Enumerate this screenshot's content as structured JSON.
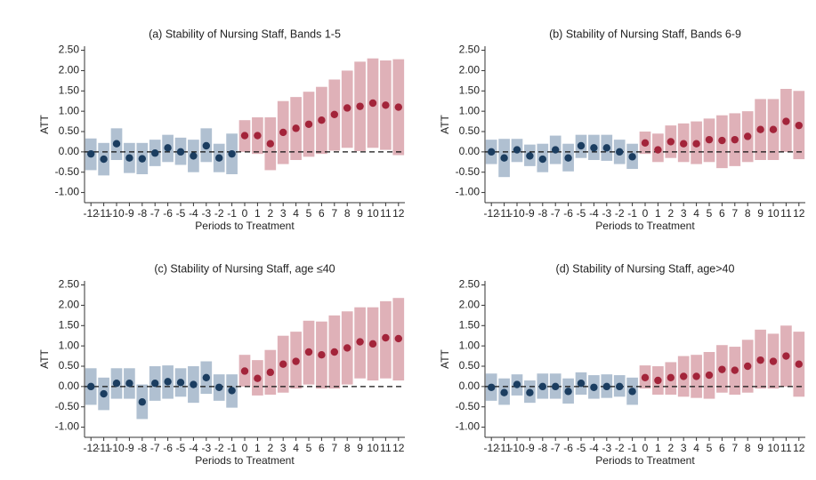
{
  "chart_data": [
    {
      "type": "errorbar",
      "title": "(a) Stability of Nursing Staff, Bands 1-5",
      "ylabel": "ATT",
      "xlabel": "Periods to Treatment",
      "xlim": [
        -12.5,
        12.5
      ],
      "xticks": [
        -12,
        -11,
        -10,
        -9,
        -8,
        -7,
        -6,
        -5,
        -4,
        -3,
        -2,
        -1,
        0,
        1,
        2,
        3,
        4,
        5,
        6,
        7,
        8,
        9,
        10,
        11,
        12
      ],
      "ylim": [
        -1.25,
        2.6
      ],
      "yticks": [
        {
          "value": 2.5,
          "label": "2.50"
        },
        {
          "value": 2,
          "label": "2.00"
        },
        {
          "value": 1.5,
          "label": "1.50"
        },
        {
          "value": 1,
          "label": "1.00"
        },
        {
          "value": 0.5,
          "label": "0.50"
        },
        {
          "value": 0,
          "label": "0.00"
        },
        {
          "value": -0.5,
          "label": "-0.50"
        },
        {
          "value": -1,
          "label": "-1.00"
        }
      ],
      "hline": 0,
      "series": [
        {
          "color": "#1b3d60",
          "band_color": "#a7b9cc",
          "x": [
            -12,
            -11,
            -10,
            -9,
            -8,
            -7,
            -6,
            -5,
            -4,
            -3,
            -2,
            -1
          ],
          "values": [
            -0.05,
            -0.18,
            0.2,
            -0.15,
            -0.17,
            -0.03,
            0.1,
            0.0,
            -0.1,
            0.15,
            -0.15,
            -0.05
          ],
          "lower": [
            -0.45,
            -0.58,
            -0.2,
            -0.52,
            -0.55,
            -0.35,
            -0.25,
            -0.32,
            -0.5,
            -0.25,
            -0.5,
            -0.55
          ],
          "upper": [
            0.33,
            0.22,
            0.58,
            0.22,
            0.22,
            0.3,
            0.42,
            0.35,
            0.3,
            0.58,
            0.2,
            0.45
          ]
        },
        {
          "color": "#a3243a",
          "band_color": "#dba9b0",
          "x": [
            0,
            1,
            2,
            3,
            4,
            5,
            6,
            7,
            8,
            9,
            10,
            11,
            12
          ],
          "values": [
            0.4,
            0.4,
            0.2,
            0.48,
            0.58,
            0.68,
            0.78,
            0.92,
            1.08,
            1.12,
            1.2,
            1.15,
            1.1
          ],
          "lower": [
            0.0,
            -0.05,
            -0.45,
            -0.3,
            -0.2,
            -0.12,
            -0.05,
            0.03,
            0.1,
            0.02,
            0.1,
            0.05,
            -0.08
          ],
          "upper": [
            0.78,
            0.85,
            0.85,
            1.25,
            1.35,
            1.48,
            1.6,
            1.78,
            2.0,
            2.22,
            2.3,
            2.25,
            2.28
          ]
        }
      ]
    },
    {
      "type": "errorbar",
      "title": "(b) Stability of Nursing Staff, Bands 6-9",
      "ylabel": "ATT",
      "xlabel": "Periods to Treatment",
      "xlim": [
        -12.5,
        12.5
      ],
      "xticks": [
        -12,
        -11,
        -10,
        -9,
        -8,
        -7,
        -6,
        -5,
        -4,
        -3,
        -2,
        -1,
        0,
        1,
        2,
        3,
        4,
        5,
        6,
        7,
        8,
        9,
        10,
        11,
        12
      ],
      "ylim": [
        -1.25,
        2.6
      ],
      "yticks": [
        {
          "value": 2.5,
          "label": "2.50"
        },
        {
          "value": 2,
          "label": "2.00"
        },
        {
          "value": 1.5,
          "label": "1.50"
        },
        {
          "value": 1,
          "label": "1.00"
        },
        {
          "value": 0.5,
          "label": "0.50"
        },
        {
          "value": 0,
          "label": "0.00"
        },
        {
          "value": -0.5,
          "label": "-0.50"
        },
        {
          "value": -1,
          "label": "-1.00"
        }
      ],
      "hline": 0,
      "series": [
        {
          "color": "#1b3d60",
          "band_color": "#a7b9cc",
          "x": [
            -12,
            -11,
            -10,
            -9,
            -8,
            -7,
            -6,
            -5,
            -4,
            -3,
            -2,
            -1
          ],
          "values": [
            0.0,
            -0.15,
            0.05,
            -0.1,
            -0.18,
            0.05,
            -0.15,
            0.15,
            0.1,
            0.1,
            0.0,
            -0.12
          ],
          "lower": [
            -0.3,
            -0.62,
            -0.25,
            -0.35,
            -0.5,
            -0.3,
            -0.48,
            -0.15,
            -0.2,
            -0.22,
            -0.3,
            -0.42
          ],
          "upper": [
            0.3,
            0.32,
            0.32,
            0.18,
            0.2,
            0.4,
            0.2,
            0.42,
            0.42,
            0.42,
            0.3,
            0.2
          ]
        },
        {
          "color": "#a3243a",
          "band_color": "#dba9b0",
          "x": [
            0,
            1,
            2,
            3,
            4,
            5,
            6,
            7,
            8,
            9,
            10,
            11,
            12
          ],
          "values": [
            0.22,
            0.05,
            0.25,
            0.2,
            0.2,
            0.3,
            0.28,
            0.3,
            0.38,
            0.55,
            0.55,
            0.75,
            0.65
          ],
          "lower": [
            -0.05,
            -0.25,
            -0.15,
            -0.25,
            -0.3,
            -0.25,
            -0.4,
            -0.35,
            -0.25,
            -0.2,
            -0.2,
            0.0,
            -0.18
          ],
          "upper": [
            0.5,
            0.45,
            0.65,
            0.7,
            0.75,
            0.82,
            0.9,
            0.95,
            1.0,
            1.3,
            1.3,
            1.55,
            1.5
          ]
        }
      ]
    },
    {
      "type": "errorbar",
      "title": "(c) Stability of Nursing Staff, age ≤40",
      "ylabel": "ATT",
      "xlabel": "Periods to Treatment",
      "xlim": [
        -12.5,
        12.5
      ],
      "xticks": [
        -12,
        -11,
        -10,
        -9,
        -8,
        -7,
        -6,
        -5,
        -4,
        -3,
        -2,
        -1,
        0,
        1,
        2,
        3,
        4,
        5,
        6,
        7,
        8,
        9,
        10,
        11,
        12
      ],
      "ylim": [
        -1.25,
        2.6
      ],
      "yticks": [
        {
          "value": 2.5,
          "label": "2.50"
        },
        {
          "value": 2,
          "label": "2.00"
        },
        {
          "value": 1.5,
          "label": "1.50"
        },
        {
          "value": 1,
          "label": "1.00"
        },
        {
          "value": 0.5,
          "label": "0.50"
        },
        {
          "value": 0,
          "label": "0.00"
        },
        {
          "value": -0.5,
          "label": "-0.50"
        },
        {
          "value": -1,
          "label": "-1.00"
        }
      ],
      "hline": 0,
      "series": [
        {
          "color": "#1b3d60",
          "band_color": "#a7b9cc",
          "x": [
            -12,
            -11,
            -10,
            -9,
            -8,
            -7,
            -6,
            -5,
            -4,
            -3,
            -2,
            -1
          ],
          "values": [
            0.0,
            -0.18,
            0.08,
            0.08,
            -0.38,
            0.08,
            0.12,
            0.1,
            0.05,
            0.22,
            -0.02,
            -0.1
          ],
          "lower": [
            -0.45,
            -0.58,
            -0.3,
            -0.3,
            -0.8,
            -0.35,
            -0.3,
            -0.25,
            -0.4,
            -0.18,
            -0.35,
            -0.52
          ],
          "upper": [
            0.45,
            0.22,
            0.45,
            0.45,
            0.05,
            0.5,
            0.52,
            0.45,
            0.5,
            0.62,
            0.3,
            0.3
          ]
        },
        {
          "color": "#a3243a",
          "band_color": "#dba9b0",
          "x": [
            0,
            1,
            2,
            3,
            4,
            5,
            6,
            7,
            8,
            9,
            10,
            11,
            12
          ],
          "values": [
            0.38,
            0.2,
            0.35,
            0.55,
            0.62,
            0.85,
            0.78,
            0.85,
            0.95,
            1.1,
            1.05,
            1.2,
            1.18
          ],
          "lower": [
            0.0,
            -0.22,
            -0.2,
            -0.15,
            -0.05,
            0.05,
            -0.05,
            -0.05,
            0.05,
            0.2,
            0.15,
            0.2,
            0.15
          ],
          "upper": [
            0.78,
            0.65,
            0.9,
            1.25,
            1.35,
            1.62,
            1.6,
            1.75,
            1.85,
            1.95,
            1.95,
            2.1,
            2.18
          ]
        }
      ]
    },
    {
      "type": "errorbar",
      "title": "(d) Stability of Nursing Staff, age>40",
      "ylabel": "ATT",
      "xlabel": "Periods to Treatment",
      "xlim": [
        -12.5,
        12.5
      ],
      "xticks": [
        -12,
        -11,
        -10,
        -9,
        -8,
        -7,
        -6,
        -5,
        -4,
        -3,
        -2,
        -1,
        0,
        1,
        2,
        3,
        4,
        5,
        6,
        7,
        8,
        9,
        10,
        11,
        12
      ],
      "ylim": [
        -1.25,
        2.6
      ],
      "yticks": [
        {
          "value": 2.5,
          "label": "2.50"
        },
        {
          "value": 2,
          "label": "2.00"
        },
        {
          "value": 1.5,
          "label": "1.50"
        },
        {
          "value": 1,
          "label": "1.00"
        },
        {
          "value": 0.5,
          "label": "0.50"
        },
        {
          "value": 0,
          "label": "0.00"
        },
        {
          "value": -0.5,
          "label": "-0.50"
        },
        {
          "value": -1,
          "label": "-1.00"
        }
      ],
      "hline": 0,
      "series": [
        {
          "color": "#1b3d60",
          "band_color": "#a7b9cc",
          "x": [
            -12,
            -11,
            -10,
            -9,
            -8,
            -7,
            -6,
            -5,
            -4,
            -3,
            -2,
            -1
          ],
          "values": [
            -0.02,
            -0.15,
            0.05,
            -0.15,
            0.0,
            0.0,
            -0.12,
            0.08,
            -0.02,
            0.0,
            0.0,
            -0.12
          ],
          "lower": [
            -0.35,
            -0.45,
            -0.22,
            -0.4,
            -0.3,
            -0.3,
            -0.42,
            -0.2,
            -0.3,
            -0.28,
            -0.25,
            -0.45
          ],
          "upper": [
            0.32,
            0.2,
            0.3,
            0.15,
            0.32,
            0.32,
            0.2,
            0.35,
            0.28,
            0.3,
            0.28,
            0.22
          ]
        },
        {
          "color": "#a3243a",
          "band_color": "#dba9b0",
          "x": [
            0,
            1,
            2,
            3,
            4,
            5,
            6,
            7,
            8,
            9,
            10,
            11,
            12
          ],
          "values": [
            0.22,
            0.15,
            0.22,
            0.25,
            0.25,
            0.28,
            0.42,
            0.4,
            0.5,
            0.65,
            0.62,
            0.75,
            0.55
          ],
          "lower": [
            -0.05,
            -0.2,
            -0.2,
            -0.25,
            -0.28,
            -0.3,
            -0.15,
            -0.2,
            -0.15,
            -0.05,
            -0.05,
            0.0,
            -0.25
          ],
          "upper": [
            0.52,
            0.5,
            0.6,
            0.75,
            0.78,
            0.85,
            1.02,
            0.98,
            1.15,
            1.4,
            1.3,
            1.5,
            1.35
          ]
        }
      ]
    }
  ]
}
